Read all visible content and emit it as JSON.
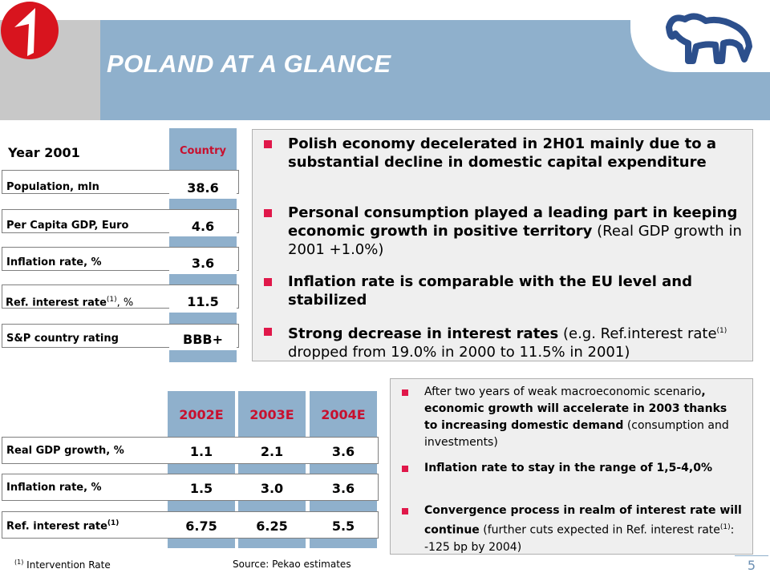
{
  "header": {
    "title": "POLAND AT A GLANCE"
  },
  "left_table": {
    "year_label": "Year 2001",
    "column_label": "Country",
    "rows": [
      {
        "label": "Population, mln",
        "value": "38.6"
      },
      {
        "label": "Per Capita GDP, Euro",
        "value": "4.6"
      },
      {
        "label": "Inflation rate, %",
        "value": "3.6"
      },
      {
        "label_main": "Ref. interest rate",
        "label_sup": "(1)",
        "label_suffix": ", %",
        "value": "11.5"
      },
      {
        "label": "S&P country rating",
        "value": "BBB+"
      }
    ]
  },
  "bullets_2001": [
    {
      "bold": "Polish economy decelerated in 2H01 mainly due to a substantial decline in domestic capital expenditure",
      "normal": ""
    },
    {
      "bold": "Personal consumption played a leading part in keeping economic growth in positive territory",
      "normal": "(Real GDP growth in 2001 +1.0%)"
    },
    {
      "bold": "Inflation rate is comparable with the EU level and stabilized",
      "normal": ""
    },
    {
      "bold": "Strong decrease in interest rates",
      "normal_a": "(e.g. Ref.interest rate",
      "sup": "(1)",
      "normal_b": "dropped from 19.0% in 2000 to 11.5% in 2001)"
    }
  ],
  "forecast_table": {
    "years": [
      "2002E",
      "2003E",
      "2004E"
    ],
    "rows": [
      {
        "label": "Real GDP growth, %",
        "values": [
          "1.1",
          "2.1",
          "3.6"
        ]
      },
      {
        "label": "Inflation rate, %",
        "values": [
          "1.5",
          "3.0",
          "3.6"
        ]
      },
      {
        "label": "Ref. interest rate",
        "label_sup": "(1)",
        "values": [
          "6.75",
          "6.25",
          "5.5"
        ]
      }
    ]
  },
  "bullets_forecast": [
    {
      "normal_a": "After two years of weak macroeconomic scenario",
      "bold": ", economic growth will accelerate in 2003 thanks to increasing domestic demand",
      "normal_b": "(consumption and investments)"
    },
    {
      "bold": "Inflation rate to stay in the range of 1,5-4,0%"
    },
    {
      "bold": "Convergence process in realm of interest rate will continue",
      "normal_a": "(further cuts expected in Ref. interest rate",
      "sup": "(1)",
      "normal_b": ": -125 bp by 2004)"
    }
  ],
  "footer": {
    "note_sup": "(1)",
    "note_text": "Intervention Rate",
    "source": "Source: Pekao estimates",
    "page": "5"
  },
  "colors": {
    "header_blue": "#8fb0cc",
    "header_gray": "#c8c8c8",
    "accent_red": "#c8102e",
    "bullet_pink": "#e0184a",
    "logo_red": "#d8141e",
    "bison_blue": "#2c4f8c"
  }
}
